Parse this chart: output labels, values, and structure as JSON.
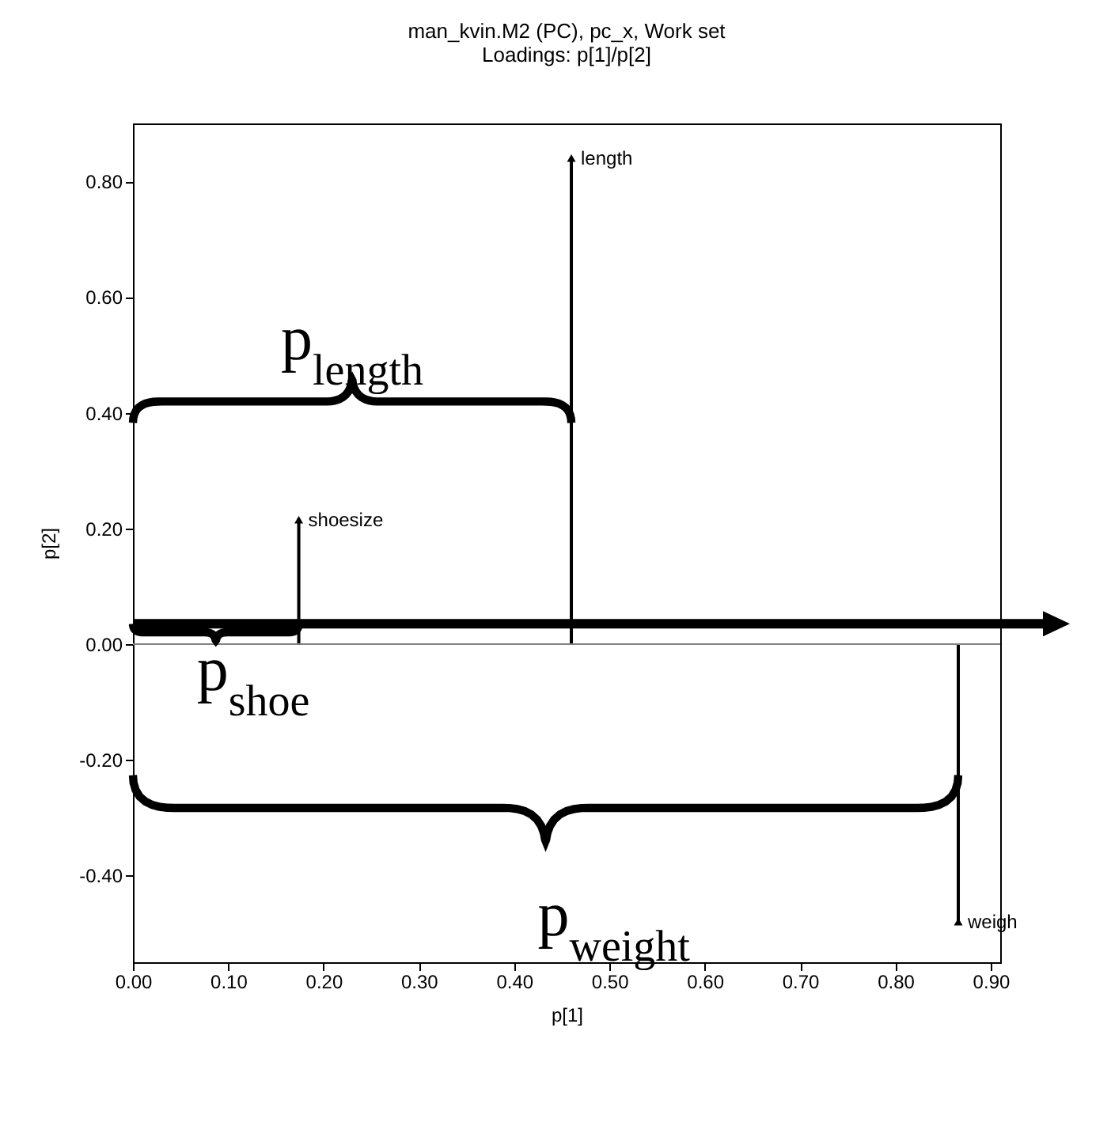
{
  "chart_data": {
    "type": "scatter",
    "title": "man_kvin.M2 (PC), pc_x, Work set",
    "subtitle": "Loadings: p[1]/p[2]",
    "xlabel": "p[1]",
    "ylabel": "p[2]",
    "series": [
      {
        "name": "length",
        "color": "#000000",
        "x": [
          0.46
        ],
        "values": [
          0.84
        ]
      },
      {
        "name": "shoesize",
        "color": "#000000",
        "x": [
          0.174
        ],
        "values": [
          0.215
        ]
      },
      {
        "name": "weigh",
        "color": "#000000",
        "x": [
          0.866
        ],
        "values": [
          -0.48
        ]
      }
    ],
    "annotations": [
      "p$_{length}$",
      {
        "text": "p$_{shoe}$",
        "x": 0.174,
        "y": 0.035
      },
      "p$_{weight}$"
    ],
    "ref_lines": [
      {
        "axis": "y",
        "value": 0,
        "color": "#808080"
      },
      {
        "axis": "y",
        "value": 0.035,
        "color": "#000000"
      }
    ],
    "marker": "triangle",
    "grid": false,
    "xlim": [
      0,
      0.91
    ],
    "ylim": [
      -0.55,
      0.9
    ],
    "xticks": [
      {
        "value": 0,
        "label": "0.00"
      },
      {
        "value": 0.1,
        "label": "0.10"
      },
      {
        "value": 0.2,
        "label": "0.20"
      },
      {
        "value": 0.3,
        "label": "0.30"
      },
      {
        "value": 0.4,
        "label": "0.40"
      },
      {
        "value": 0.5,
        "label": "0.50"
      },
      {
        "value": 0.6,
        "label": "0.60"
      },
      {
        "value": 0.7,
        "label": "0.70"
      },
      {
        "value": 0.8,
        "label": "0.80"
      },
      {
        "value": 0.9,
        "label": "0.90"
      }
    ],
    "yticks": [
      {
        "value": -0.4,
        "label": "-0.40"
      },
      {
        "value": -0.2,
        "label": "-0.20"
      },
      {
        "value": 0,
        "label": "0.00"
      },
      {
        "value": 0.2,
        "label": "0.20"
      },
      {
        "value": 0.4,
        "label": "0.40"
      },
      {
        "value": 0.6,
        "label": "0.60"
      },
      {
        "value": 0.8,
        "label": "0.80"
      }
    ]
  }
}
